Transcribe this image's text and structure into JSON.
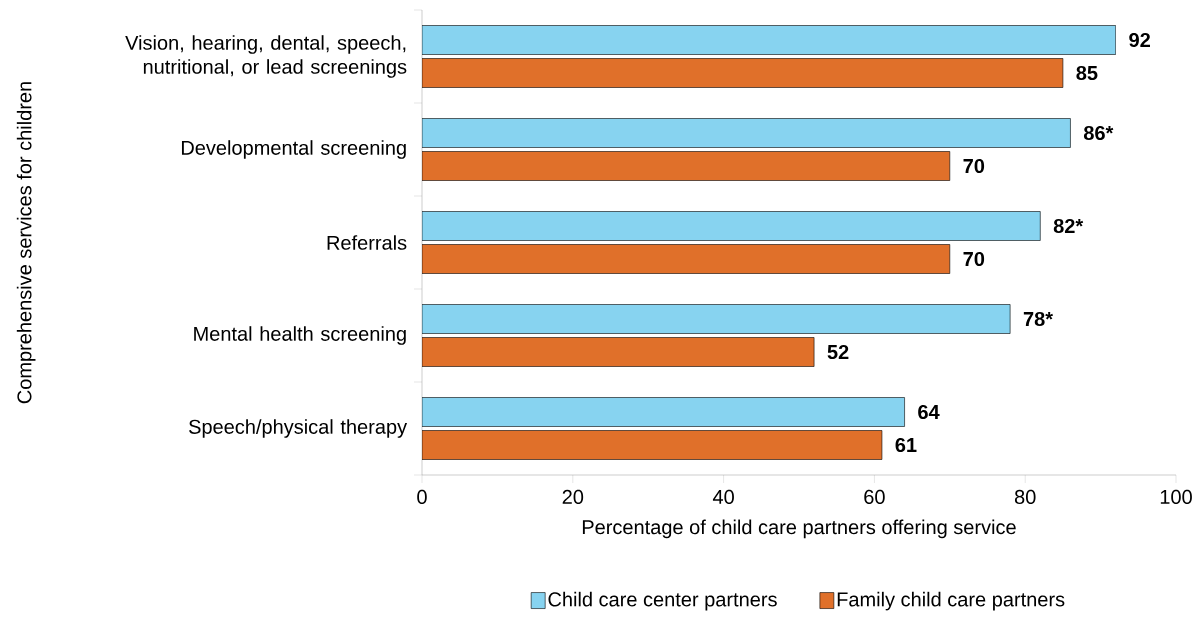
{
  "chart_data": {
    "type": "bar",
    "orientation": "horizontal",
    "xlabel": "Percentage of child care partners offering service",
    "ylabel": "Comprehensive services for children",
    "categories": [
      "Vision, hearing, dental, speech, nutritional, or lead screenings",
      "Developmental screening",
      "Referrals",
      "Mental health screening",
      "Speech/physical therapy"
    ],
    "series": [
      {
        "name": "Child care center partners",
        "color": "#87d3f0",
        "values": [
          92,
          86,
          82,
          78,
          64
        ],
        "value_labels": [
          "92",
          "86*",
          "82*",
          "78*",
          "64"
        ]
      },
      {
        "name": "Family child care partners",
        "color": "#e0702a",
        "values": [
          85,
          70,
          70,
          52,
          61
        ],
        "value_labels": [
          "85",
          "70",
          "70",
          "52",
          "61"
        ]
      }
    ],
    "xlim": [
      0,
      100
    ],
    "xticks": [
      0,
      20,
      40,
      60,
      80,
      100
    ],
    "grid": false,
    "legend": "bottom"
  }
}
